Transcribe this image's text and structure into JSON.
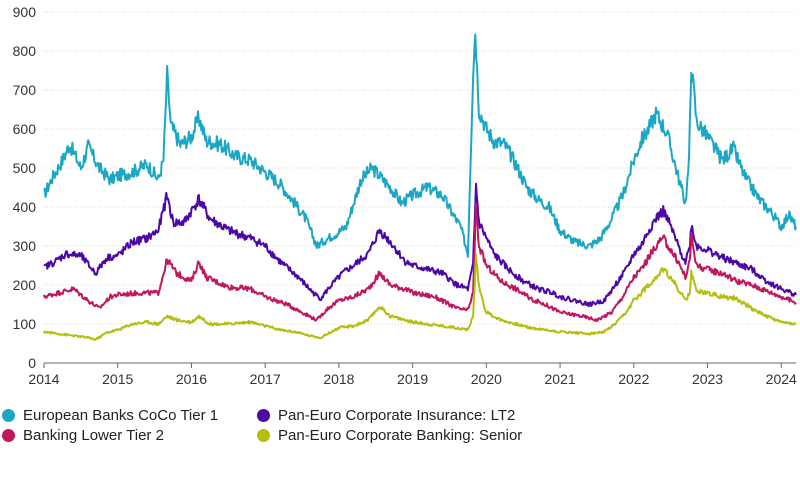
{
  "chart_data": {
    "type": "line",
    "title": "",
    "xlabel": "",
    "ylabel": "",
    "xlim": [
      2014.0,
      2024.2
    ],
    "ylim": [
      0,
      900
    ],
    "y_ticks": [
      0,
      100,
      200,
      300,
      400,
      500,
      600,
      700,
      800,
      900
    ],
    "x_ticks": [
      "2014",
      "2015",
      "2016",
      "2017",
      "2018",
      "2019",
      "2020",
      "2021",
      "2022",
      "2023",
      "2024"
    ],
    "grid": "horizontal",
    "legend_position": "bottom",
    "series": [
      {
        "name": "European Banks CoCo Tier 1",
        "color": "#1ba7c4",
        "points": [
          [
            2014.0,
            430
          ],
          [
            2014.1,
            470
          ],
          [
            2014.25,
            520
          ],
          [
            2014.35,
            560
          ],
          [
            2014.5,
            500
          ],
          [
            2014.6,
            555
          ],
          [
            2014.75,
            500
          ],
          [
            2014.9,
            470
          ],
          [
            2015.0,
            480
          ],
          [
            2015.2,
            490
          ],
          [
            2015.4,
            510
          ],
          [
            2015.55,
            470
          ],
          [
            2015.62,
            520
          ],
          [
            2015.67,
            740
          ],
          [
            2015.72,
            610
          ],
          [
            2015.85,
            560
          ],
          [
            2016.0,
            580
          ],
          [
            2016.1,
            630
          ],
          [
            2016.2,
            570
          ],
          [
            2016.4,
            560
          ],
          [
            2016.6,
            530
          ],
          [
            2016.8,
            520
          ],
          [
            2017.0,
            490
          ],
          [
            2017.2,
            460
          ],
          [
            2017.4,
            410
          ],
          [
            2017.55,
            370
          ],
          [
            2017.7,
            300
          ],
          [
            2017.85,
            320
          ],
          [
            2017.95,
            330
          ],
          [
            2018.1,
            350
          ],
          [
            2018.3,
            470
          ],
          [
            2018.45,
            500
          ],
          [
            2018.55,
            480
          ],
          [
            2018.7,
            450
          ],
          [
            2018.85,
            410
          ],
          [
            2019.0,
            430
          ],
          [
            2019.2,
            450
          ],
          [
            2019.4,
            430
          ],
          [
            2019.55,
            380
          ],
          [
            2019.65,
            350
          ],
          [
            2019.75,
            280
          ],
          [
            2019.82,
            750
          ],
          [
            2019.85,
            855
          ],
          [
            2019.9,
            650
          ],
          [
            2020.0,
            600
          ],
          [
            2020.1,
            570
          ],
          [
            2020.25,
            560
          ],
          [
            2020.4,
            510
          ],
          [
            2020.55,
            450
          ],
          [
            2020.7,
            420
          ],
          [
            2020.85,
            400
          ],
          [
            2021.0,
            340
          ],
          [
            2021.2,
            310
          ],
          [
            2021.4,
            300
          ],
          [
            2021.55,
            320
          ],
          [
            2021.7,
            370
          ],
          [
            2021.85,
            430
          ],
          [
            2022.0,
            520
          ],
          [
            2022.1,
            570
          ],
          [
            2022.2,
            600
          ],
          [
            2022.3,
            640
          ],
          [
            2022.45,
            590
          ],
          [
            2022.6,
            480
          ],
          [
            2022.7,
            410
          ],
          [
            2022.75,
            520
          ],
          [
            2022.78,
            770
          ],
          [
            2022.85,
            620
          ],
          [
            2023.0,
            580
          ],
          [
            2023.2,
            520
          ],
          [
            2023.35,
            550
          ],
          [
            2023.5,
            480
          ],
          [
            2023.7,
            420
          ],
          [
            2023.85,
            390
          ],
          [
            2024.0,
            350
          ],
          [
            2024.1,
            380
          ],
          [
            2024.2,
            350
          ]
        ]
      },
      {
        "name": "Banking Lower Tier 2",
        "color": "#c0175d",
        "points": [
          [
            2014.0,
            170
          ],
          [
            2014.2,
            180
          ],
          [
            2014.4,
            190
          ],
          [
            2014.6,
            160
          ],
          [
            2014.75,
            140
          ],
          [
            2014.9,
            170
          ],
          [
            2015.0,
            175
          ],
          [
            2015.3,
            180
          ],
          [
            2015.55,
            180
          ],
          [
            2015.67,
            265
          ],
          [
            2015.8,
            230
          ],
          [
            2016.0,
            210
          ],
          [
            2016.1,
            260
          ],
          [
            2016.2,
            220
          ],
          [
            2016.5,
            195
          ],
          [
            2016.8,
            190
          ],
          [
            2017.0,
            170
          ],
          [
            2017.3,
            150
          ],
          [
            2017.5,
            130
          ],
          [
            2017.7,
            110
          ],
          [
            2017.85,
            140
          ],
          [
            2018.0,
            160
          ],
          [
            2018.2,
            170
          ],
          [
            2018.4,
            190
          ],
          [
            2018.55,
            230
          ],
          [
            2018.7,
            200
          ],
          [
            2018.9,
            190
          ],
          [
            2019.0,
            180
          ],
          [
            2019.3,
            170
          ],
          [
            2019.6,
            140
          ],
          [
            2019.75,
            135
          ],
          [
            2019.82,
            180
          ],
          [
            2019.86,
            400
          ],
          [
            2019.9,
            300
          ],
          [
            2020.0,
            250
          ],
          [
            2020.2,
            210
          ],
          [
            2020.4,
            190
          ],
          [
            2020.6,
            165
          ],
          [
            2020.8,
            150
          ],
          [
            2021.0,
            130
          ],
          [
            2021.3,
            120
          ],
          [
            2021.5,
            110
          ],
          [
            2021.7,
            130
          ],
          [
            2021.85,
            170
          ],
          [
            2022.0,
            220
          ],
          [
            2022.1,
            240
          ],
          [
            2022.2,
            270
          ],
          [
            2022.3,
            300
          ],
          [
            2022.4,
            320
          ],
          [
            2022.6,
            260
          ],
          [
            2022.7,
            220
          ],
          [
            2022.76,
            260
          ],
          [
            2022.78,
            330
          ],
          [
            2022.85,
            250
          ],
          [
            2023.0,
            240
          ],
          [
            2023.2,
            230
          ],
          [
            2023.4,
            210
          ],
          [
            2023.6,
            200
          ],
          [
            2023.8,
            185
          ],
          [
            2024.0,
            170
          ],
          [
            2024.2,
            155
          ]
        ]
      },
      {
        "name": "Pan-Euro Corporate Insurance: LT2",
        "color": "#4b08a7",
        "points": [
          [
            2014.0,
            245
          ],
          [
            2014.15,
            260
          ],
          [
            2014.3,
            280
          ],
          [
            2014.5,
            275
          ],
          [
            2014.7,
            230
          ],
          [
            2014.85,
            270
          ],
          [
            2015.0,
            275
          ],
          [
            2015.2,
            310
          ],
          [
            2015.4,
            320
          ],
          [
            2015.55,
            340
          ],
          [
            2015.67,
            430
          ],
          [
            2015.75,
            360
          ],
          [
            2015.9,
            360
          ],
          [
            2016.1,
            420
          ],
          [
            2016.25,
            370
          ],
          [
            2016.5,
            340
          ],
          [
            2016.8,
            320
          ],
          [
            2017.0,
            300
          ],
          [
            2017.2,
            260
          ],
          [
            2017.45,
            220
          ],
          [
            2017.65,
            180
          ],
          [
            2017.75,
            165
          ],
          [
            2017.9,
            200
          ],
          [
            2018.05,
            230
          ],
          [
            2018.2,
            250
          ],
          [
            2018.4,
            280
          ],
          [
            2018.55,
            340
          ],
          [
            2018.7,
            310
          ],
          [
            2018.9,
            260
          ],
          [
            2019.0,
            250
          ],
          [
            2019.2,
            240
          ],
          [
            2019.4,
            230
          ],
          [
            2019.6,
            200
          ],
          [
            2019.75,
            190
          ],
          [
            2019.82,
            250
          ],
          [
            2019.86,
            455
          ],
          [
            2019.9,
            360
          ],
          [
            2020.0,
            320
          ],
          [
            2020.1,
            280
          ],
          [
            2020.3,
            240
          ],
          [
            2020.5,
            210
          ],
          [
            2020.7,
            190
          ],
          [
            2020.9,
            180
          ],
          [
            2021.0,
            170
          ],
          [
            2021.2,
            160
          ],
          [
            2021.4,
            150
          ],
          [
            2021.6,
            160
          ],
          [
            2021.75,
            200
          ],
          [
            2021.9,
            240
          ],
          [
            2022.0,
            280
          ],
          [
            2022.1,
            300
          ],
          [
            2022.2,
            340
          ],
          [
            2022.3,
            370
          ],
          [
            2022.4,
            390
          ],
          [
            2022.5,
            350
          ],
          [
            2022.6,
            300
          ],
          [
            2022.7,
            260
          ],
          [
            2022.76,
            300
          ],
          [
            2022.78,
            355
          ],
          [
            2022.85,
            300
          ],
          [
            2023.0,
            290
          ],
          [
            2023.2,
            270
          ],
          [
            2023.4,
            255
          ],
          [
            2023.6,
            240
          ],
          [
            2023.8,
            210
          ],
          [
            2024.0,
            190
          ],
          [
            2024.2,
            175
          ]
        ]
      },
      {
        "name": "Pan-Euro Corporate Banking: Senior",
        "color": "#b3be0f",
        "points": [
          [
            2014.0,
            80
          ],
          [
            2014.2,
            75
          ],
          [
            2014.4,
            70
          ],
          [
            2014.6,
            65
          ],
          [
            2014.7,
            60
          ],
          [
            2014.85,
            78
          ],
          [
            2015.0,
            85
          ],
          [
            2015.2,
            100
          ],
          [
            2015.4,
            105
          ],
          [
            2015.55,
            100
          ],
          [
            2015.67,
            120
          ],
          [
            2015.8,
            110
          ],
          [
            2016.0,
            105
          ],
          [
            2016.1,
            120
          ],
          [
            2016.25,
            100
          ],
          [
            2016.5,
            100
          ],
          [
            2016.8,
            105
          ],
          [
            2017.0,
            95
          ],
          [
            2017.2,
            85
          ],
          [
            2017.4,
            80
          ],
          [
            2017.6,
            70
          ],
          [
            2017.75,
            65
          ],
          [
            2017.9,
            80
          ],
          [
            2018.0,
            90
          ],
          [
            2018.2,
            95
          ],
          [
            2018.4,
            110
          ],
          [
            2018.55,
            145
          ],
          [
            2018.7,
            120
          ],
          [
            2018.9,
            110
          ],
          [
            2019.0,
            105
          ],
          [
            2019.2,
            100
          ],
          [
            2019.4,
            95
          ],
          [
            2019.6,
            90
          ],
          [
            2019.75,
            85
          ],
          [
            2019.82,
            120
          ],
          [
            2019.86,
            270
          ],
          [
            2019.9,
            200
          ],
          [
            2019.95,
            160
          ],
          [
            2020.0,
            130
          ],
          [
            2020.2,
            110
          ],
          [
            2020.4,
            100
          ],
          [
            2020.6,
            90
          ],
          [
            2020.8,
            85
          ],
          [
            2021.0,
            80
          ],
          [
            2021.2,
            78
          ],
          [
            2021.4,
            75
          ],
          [
            2021.6,
            80
          ],
          [
            2021.75,
            100
          ],
          [
            2021.9,
            130
          ],
          [
            2022.0,
            160
          ],
          [
            2022.1,
            180
          ],
          [
            2022.2,
            200
          ],
          [
            2022.3,
            220
          ],
          [
            2022.4,
            240
          ],
          [
            2022.5,
            220
          ],
          [
            2022.6,
            190
          ],
          [
            2022.7,
            160
          ],
          [
            2022.76,
            180
          ],
          [
            2022.78,
            230
          ],
          [
            2022.85,
            185
          ],
          [
            2023.0,
            180
          ],
          [
            2023.2,
            170
          ],
          [
            2023.4,
            165
          ],
          [
            2023.6,
            140
          ],
          [
            2023.8,
            120
          ],
          [
            2024.0,
            105
          ],
          [
            2024.2,
            100
          ]
        ]
      }
    ]
  }
}
